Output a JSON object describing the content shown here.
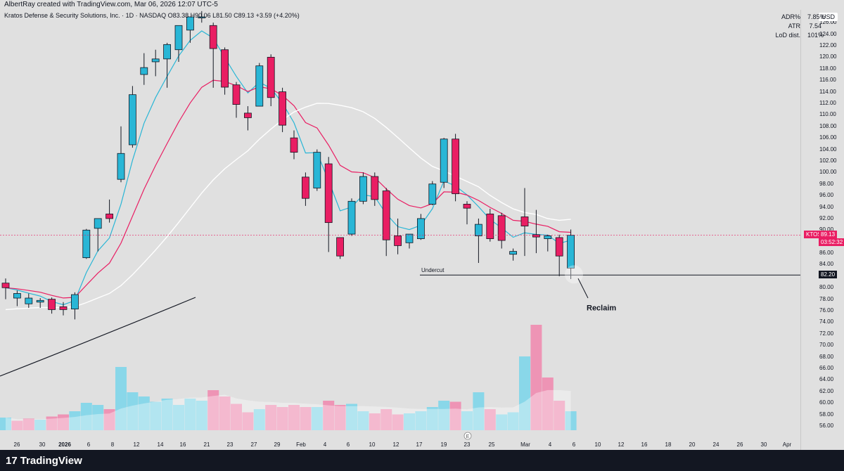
{
  "header": {
    "title": "AlbertRay created with TradingView.com, Mar 06, 2026 12:07 UTC-5"
  },
  "legend": {
    "symbol_line": "Kratos Defense & Security Solutions, Inc. · 1D · NASDAQ  O83.38  H90.06  L81.50  C89.13  +3.59 (+4.20%)"
  },
  "stats": [
    {
      "label": "ADR%",
      "value": "7.85%"
    },
    {
      "label": "ATR",
      "value": "7.54"
    },
    {
      "label": "LoD dist.",
      "value": "101%"
    }
  ],
  "currency": "USD",
  "price_ticks": [
    "126.00",
    "124.00",
    "122.00",
    "120.00",
    "118.00",
    "116.00",
    "114.00",
    "112.00",
    "110.00",
    "108.00",
    "106.00",
    "104.00",
    "102.00",
    "100.00",
    "98.00",
    "96.00",
    "94.00",
    "92.00",
    "90.00",
    "88.00",
    "86.00",
    "84.00",
    "82.00",
    "80.00",
    "78.00",
    "76.00",
    "74.00",
    "72.00",
    "70.00",
    "68.00",
    "66.00",
    "64.00",
    "62.00",
    "60.00",
    "58.00",
    "56.00"
  ],
  "price_tag": {
    "symbol": "KTOS",
    "price": "89.13",
    "countdown": "03:52:32"
  },
  "level_tag": "82.20",
  "annotations": {
    "undercut": "Undercut",
    "reclaim": "Reclaim"
  },
  "earnings_marker": "E",
  "date_ticks": [
    "26",
    "30",
    "2026",
    "6",
    "8",
    "12",
    "14",
    "16",
    "21",
    "23",
    "27",
    "29",
    "Feb",
    "4",
    "6",
    "10",
    "12",
    "17",
    "19",
    "23",
    "25",
    "Mar",
    "4",
    "6",
    "10",
    "12",
    "16",
    "18",
    "20",
    "24",
    "26",
    "30",
    "Apr",
    "6"
  ],
  "footer": {
    "brand": "TradingView"
  },
  "colors": {
    "up": "#29b6d6",
    "down": "#e91e63",
    "ema_fast": "#29b6d6",
    "ema_mid": "#e91e63",
    "sma_slow": "#ffffff",
    "sma_long": "#131722"
  },
  "chart_data": {
    "type": "candlestick",
    "ylim": [
      56,
      127
    ],
    "candles": [
      {
        "d": "Dec 23",
        "o": 80.8,
        "h": 81.6,
        "l": 78.0,
        "c": 80.0
      },
      {
        "d": "Dec 24",
        "o": 78.2,
        "h": 79.5,
        "l": 76.8,
        "c": 79.0
      },
      {
        "d": "Dec 26",
        "o": 77.2,
        "h": 79.0,
        "l": 76.5,
        "c": 78.2
      },
      {
        "d": "Dec 29",
        "o": 77.5,
        "h": 78.2,
        "l": 76.5,
        "c": 77.8
      },
      {
        "d": "Dec 30",
        "o": 78.0,
        "h": 78.3,
        "l": 75.5,
        "c": 76.2
      },
      {
        "d": "Dec 31",
        "o": 76.7,
        "h": 77.5,
        "l": 75.2,
        "c": 76.2
      },
      {
        "d": "Jan 2",
        "o": 76.3,
        "h": 79.2,
        "l": 74.5,
        "c": 78.8
      },
      {
        "d": "Jan 5",
        "o": 85.2,
        "h": 90.2,
        "l": 85.0,
        "c": 90.0
      },
      {
        "d": "Jan 6",
        "o": 90.3,
        "h": 92.0,
        "l": 86.3,
        "c": 92.0
      },
      {
        "d": "Jan 7",
        "o": 92.8,
        "h": 95.3,
        "l": 91.3,
        "c": 92.0
      },
      {
        "d": "Jan 8",
        "o": 98.8,
        "h": 108.0,
        "l": 98.3,
        "c": 103.3
      },
      {
        "d": "Jan 9",
        "o": 104.8,
        "h": 115.0,
        "l": 104.3,
        "c": 113.5
      },
      {
        "d": "Jan 12",
        "o": 117.0,
        "h": 120.7,
        "l": 115.2,
        "c": 118.2
      },
      {
        "d": "Jan 13",
        "o": 119.2,
        "h": 121.3,
        "l": 116.7,
        "c": 119.7
      },
      {
        "d": "Jan 14",
        "o": 119.7,
        "h": 122.5,
        "l": 114.7,
        "c": 122.2
      },
      {
        "d": "Jan 15",
        "o": 121.3,
        "h": 125.5,
        "l": 119.2,
        "c": 125.5
      },
      {
        "d": "Jan 16",
        "o": 124.7,
        "h": 127.0,
        "l": 122.5,
        "c": 127.0
      },
      {
        "d": "Jan 20",
        "o": 127.0,
        "h": 128.0,
        "l": 126.0,
        "c": 127.0
      },
      {
        "d": "Jan 21",
        "o": 125.5,
        "h": 126.0,
        "l": 114.7,
        "c": 121.5
      },
      {
        "d": "Jan 22",
        "o": 121.3,
        "h": 121.7,
        "l": 113.5,
        "c": 114.8
      },
      {
        "d": "Jan 23",
        "o": 115.2,
        "h": 115.7,
        "l": 109.5,
        "c": 111.8
      },
      {
        "d": "Jan 26",
        "o": 110.3,
        "h": 111.5,
        "l": 107.3,
        "c": 109.5
      },
      {
        "d": "Jan 27",
        "o": 111.5,
        "h": 119.0,
        "l": 111.5,
        "c": 118.5
      },
      {
        "d": "Jan 28",
        "o": 120.0,
        "h": 120.5,
        "l": 111.5,
        "c": 113.0
      },
      {
        "d": "Jan 29",
        "o": 114.0,
        "h": 114.7,
        "l": 107.0,
        "c": 108.2
      },
      {
        "d": "Jan 30",
        "o": 106.0,
        "h": 107.3,
        "l": 102.3,
        "c": 103.5
      },
      {
        "d": "Feb 2",
        "o": 99.2,
        "h": 100.0,
        "l": 94.2,
        "c": 95.5
      },
      {
        "d": "Feb 3",
        "o": 97.3,
        "h": 104.0,
        "l": 96.8,
        "c": 103.5
      },
      {
        "d": "Feb 4",
        "o": 101.5,
        "h": 102.7,
        "l": 86.2,
        "c": 91.3
      },
      {
        "d": "Feb 5",
        "o": 88.7,
        "h": 88.7,
        "l": 85.0,
        "c": 85.5
      },
      {
        "d": "Feb 6",
        "o": 89.3,
        "h": 95.5,
        "l": 89.0,
        "c": 95.0
      },
      {
        "d": "Feb 9",
        "o": 95.0,
        "h": 100.0,
        "l": 94.5,
        "c": 99.3
      },
      {
        "d": "Feb 10",
        "o": 99.3,
        "h": 100.0,
        "l": 94.2,
        "c": 95.3
      },
      {
        "d": "Feb 11",
        "o": 96.8,
        "h": 97.3,
        "l": 85.5,
        "c": 88.3
      },
      {
        "d": "Feb 12",
        "o": 89.0,
        "h": 92.0,
        "l": 85.8,
        "c": 87.3
      },
      {
        "d": "Feb 13",
        "o": 87.8,
        "h": 89.3,
        "l": 86.8,
        "c": 89.3
      },
      {
        "d": "Feb 17",
        "o": 88.5,
        "h": 92.8,
        "l": 88.3,
        "c": 92.0
      },
      {
        "d": "Feb 18",
        "o": 94.5,
        "h": 98.5,
        "l": 94.3,
        "c": 98.0
      },
      {
        "d": "Feb 19",
        "o": 98.3,
        "h": 106.0,
        "l": 97.3,
        "c": 105.8
      },
      {
        "d": "Feb 20",
        "o": 105.8,
        "h": 106.7,
        "l": 95.0,
        "c": 96.3
      },
      {
        "d": "Feb 23",
        "o": 94.5,
        "h": 95.0,
        "l": 91.0,
        "c": 93.8
      },
      {
        "d": "Feb 24",
        "o": 89.0,
        "h": 92.0,
        "l": 84.3,
        "c": 91.0
      },
      {
        "d": "Feb 25",
        "o": 92.8,
        "h": 93.7,
        "l": 88.0,
        "c": 88.5
      },
      {
        "d": "Feb 26",
        "o": 92.5,
        "h": 93.0,
        "l": 86.8,
        "c": 88.2
      },
      {
        "d": "Feb 27",
        "o": 85.8,
        "h": 86.8,
        "l": 84.7,
        "c": 86.3
      },
      {
        "d": "Mar 2",
        "o": 92.3,
        "h": 97.3,
        "l": 85.5,
        "c": 90.7
      },
      {
        "d": "Mar 3",
        "o": 89.2,
        "h": 93.5,
        "l": 86.0,
        "c": 88.8
      },
      {
        "d": "Mar 4",
        "o": 88.5,
        "h": 89.2,
        "l": 86.3,
        "c": 89.0
      },
      {
        "d": "Mar 5",
        "o": 88.7,
        "h": 89.2,
        "l": 82.0,
        "c": 85.5
      },
      {
        "d": "Mar 6",
        "o": 83.4,
        "h": 90.1,
        "l": 81.5,
        "c": 89.1
      }
    ],
    "volume": [
      {
        "up": true,
        "v": 0.12
      },
      {
        "up": false,
        "v": 0.09
      },
      {
        "up": false,
        "v": 0.11
      },
      {
        "up": true,
        "v": 0.1
      },
      {
        "up": false,
        "v": 0.13
      },
      {
        "up": false,
        "v": 0.15
      },
      {
        "up": true,
        "v": 0.18
      },
      {
        "up": true,
        "v": 0.26
      },
      {
        "up": true,
        "v": 0.24
      },
      {
        "up": false,
        "v": 0.2
      },
      {
        "up": true,
        "v": 0.6
      },
      {
        "up": true,
        "v": 0.36
      },
      {
        "up": true,
        "v": 0.32
      },
      {
        "up": true,
        "v": 0.27
      },
      {
        "up": true,
        "v": 0.3
      },
      {
        "up": true,
        "v": 0.24
      },
      {
        "up": true,
        "v": 0.3
      },
      {
        "up": true,
        "v": 0.28
      },
      {
        "up": false,
        "v": 0.38
      },
      {
        "up": false,
        "v": 0.32
      },
      {
        "up": false,
        "v": 0.25
      },
      {
        "up": false,
        "v": 0.17
      },
      {
        "up": true,
        "v": 0.2
      },
      {
        "up": false,
        "v": 0.24
      },
      {
        "up": false,
        "v": 0.22
      },
      {
        "up": false,
        "v": 0.24
      },
      {
        "up": false,
        "v": 0.22
      },
      {
        "up": true,
        "v": 0.22
      },
      {
        "up": false,
        "v": 0.28
      },
      {
        "up": false,
        "v": 0.24
      },
      {
        "up": true,
        "v": 0.25
      },
      {
        "up": true,
        "v": 0.18
      },
      {
        "up": false,
        "v": 0.16
      },
      {
        "up": false,
        "v": 0.2
      },
      {
        "up": false,
        "v": 0.15
      },
      {
        "up": true,
        "v": 0.16
      },
      {
        "up": true,
        "v": 0.18
      },
      {
        "up": true,
        "v": 0.22
      },
      {
        "up": true,
        "v": 0.28
      },
      {
        "up": false,
        "v": 0.27
      },
      {
        "up": true,
        "v": 0.18
      },
      {
        "up": true,
        "v": 0.36
      },
      {
        "up": false,
        "v": 0.2
      },
      {
        "up": true,
        "v": 0.15
      },
      {
        "up": true,
        "v": 0.17
      },
      {
        "up": true,
        "v": 0.7
      },
      {
        "up": false,
        "v": 1.0
      },
      {
        "up": false,
        "v": 0.5
      },
      {
        "up": false,
        "v": 0.28
      },
      {
        "up": true,
        "v": 0.18
      }
    ]
  }
}
